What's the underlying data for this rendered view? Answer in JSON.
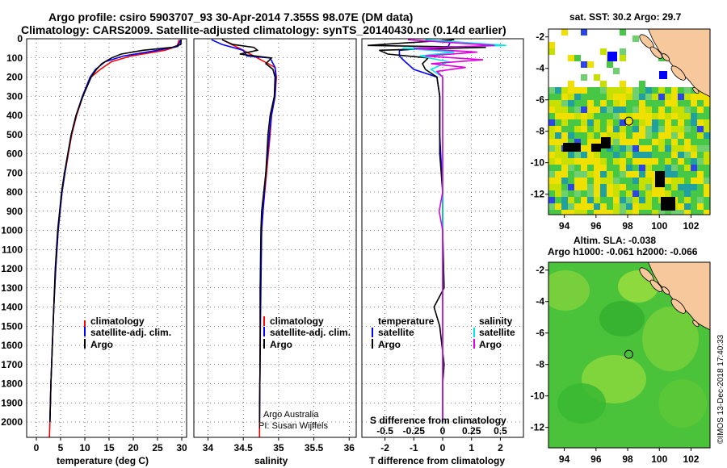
{
  "title_line1": "Argo profile: csiro 5903707_93 30-Apr-2014 7.355S 98.07E (DM data)",
  "title_line2": "Climatology: CARS2009. Satellite-adjusted climatology: synTS_20140430.nc (0.14d earlier)",
  "credit": "©IMOS 13-Dec-2018 17:40:33",
  "colors": {
    "climatology": "#ff0000",
    "satellite": "#0000ff",
    "argo": "#000000",
    "satellite_salinity": "#00e5e5",
    "argo_salinity": "#e000e0"
  },
  "chart_data": [
    {
      "type": "line",
      "name": "temperature",
      "xlabel": "temperature (deg C)",
      "ylabel": "",
      "xlim": [
        -2,
        31
      ],
      "ylim": [
        2080,
        0
      ],
      "xticks": [
        "0",
        "5",
        "10",
        "15",
        "20",
        "25",
        "30"
      ],
      "yticks": [
        "0",
        "100",
        "200",
        "300",
        "400",
        "500",
        "600",
        "700",
        "800",
        "900",
        "1000",
        "1100",
        "1200",
        "1300",
        "1400",
        "1500",
        "1600",
        "1700",
        "1800",
        "1900",
        "2000"
      ],
      "legend": [
        "climatology",
        "satellite-adj. clim.",
        "Argo"
      ],
      "series": [
        {
          "name": "climatology",
          "depth": [
            5,
            40,
            60,
            90,
            120,
            160,
            200,
            300,
            400,
            500,
            600,
            700,
            800,
            900,
            1000,
            1200,
            1400,
            1600,
            1800,
            2000,
            2080
          ],
          "values": [
            29.5,
            29,
            26.5,
            19.5,
            15.5,
            13.2,
            11.3,
            9.6,
            8.3,
            7.3,
            6.6,
            5.9,
            5.3,
            4.9,
            4.5,
            4.0,
            3.6,
            3.3,
            3.0,
            2.8,
            2.7
          ]
        },
        {
          "name": "satellite-adj. clim.",
          "depth": [
            5,
            40,
            60,
            90,
            120,
            160,
            200,
            300,
            400,
            500,
            600,
            700,
            800,
            900,
            1000,
            1200,
            1400,
            1600,
            1800,
            2000
          ],
          "values": [
            29.8,
            29.2,
            25,
            18,
            14.2,
            12.2,
            11.1,
            9.5,
            8.2,
            7.2,
            6.5,
            5.9,
            5.3,
            4.9,
            4.5,
            4.0,
            3.6,
            3.3,
            3.0,
            2.8
          ]
        },
        {
          "name": "Argo",
          "depth": [
            5,
            30,
            45,
            60,
            80,
            100,
            130,
            160,
            200,
            300,
            400,
            500,
            600,
            700,
            800,
            900,
            1000,
            1200,
            1400,
            1600,
            1800,
            2000
          ],
          "values": [
            29.9,
            29.8,
            28,
            22,
            17.5,
            15.5,
            13.5,
            12.4,
            11.3,
            9.6,
            8.2,
            7.2,
            6.5,
            5.8,
            5.2,
            4.8,
            4.4,
            3.9,
            3.6,
            3.3,
            3.0,
            2.8
          ]
        }
      ]
    },
    {
      "type": "line",
      "name": "salinity",
      "xlabel": "salinity",
      "xlim": [
        33.8,
        36.1
      ],
      "ylim": [
        2080,
        0
      ],
      "xticks": [
        "34",
        "34.5",
        "35",
        "35.5",
        "36"
      ],
      "legend": [
        "climatology",
        "satellite-adj. clim.",
        "Argo"
      ],
      "annotations": [
        "Argo Australia",
        "PI: Susan Wijffels"
      ],
      "series": [
        {
          "name": "climatology",
          "depth": [
            5,
            60,
            100,
            150,
            200,
            300,
            400,
            500,
            700,
            900,
            1000,
            1300,
            1600,
            2000,
            2080
          ],
          "values": [
            34.2,
            34.5,
            34.7,
            34.95,
            34.97,
            34.95,
            34.9,
            34.88,
            34.83,
            34.78,
            34.76,
            34.74,
            34.74,
            34.73,
            34.73
          ]
        },
        {
          "name": "satellite-adj. clim.",
          "depth": [
            5,
            30,
            60,
            90,
            100,
            150,
            200,
            300,
            400,
            500,
            700,
            900,
            1000,
            1300,
            1600,
            2000
          ],
          "values": [
            34.05,
            34.2,
            34.5,
            34.55,
            34.88,
            34.95,
            34.96,
            34.95,
            34.9,
            34.87,
            34.82,
            34.78,
            34.76,
            34.75,
            34.74,
            34.73
          ]
        },
        {
          "name": "Argo",
          "depth": [
            5,
            30,
            45,
            60,
            80,
            100,
            130,
            160,
            200,
            300,
            400,
            500,
            700,
            900,
            1000,
            1300,
            1600,
            2000
          ],
          "values": [
            34.2,
            34.35,
            34.65,
            34.7,
            34.45,
            34.9,
            34.82,
            34.92,
            34.95,
            34.94,
            34.88,
            34.85,
            34.82,
            34.76,
            34.75,
            34.74,
            34.74,
            34.73
          ]
        }
      ]
    },
    {
      "type": "line",
      "name": "difference from climatology",
      "xlabel": "T difference from climatology",
      "xlabel2": "S difference from climatology",
      "xlim": [
        -2.8,
        2.8
      ],
      "xlim2": [
        -0.7,
        0.7
      ],
      "ylim": [
        2080,
        0
      ],
      "xticks": [
        "-2",
        "-1",
        "0",
        "1",
        "2"
      ],
      "xticks2": [
        "-0.5",
        "-0.25",
        "0",
        "0.25",
        "0.5"
      ],
      "legend_temperature": [
        "temperature",
        "satellite",
        "Argo"
      ],
      "legend_salinity": [
        "salinity",
        "satellite",
        "Argo"
      ],
      "series": [
        {
          "name": "temperature satellite",
          "depth": [
            5,
            40,
            60,
            90,
            120,
            160,
            200,
            300,
            500,
            800,
            1000,
            1500,
            2000
          ],
          "values": [
            0.3,
            0.2,
            -1.5,
            -1.5,
            -1.3,
            -1.0,
            -0.2,
            -0.1,
            -0.1,
            0,
            0,
            0,
            0
          ]
        },
        {
          "name": "temperature Argo",
          "depth": [
            5,
            35,
            45,
            60,
            80,
            100,
            130,
            160,
            200,
            300,
            400,
            600,
            800,
            1000,
            1300,
            1400,
            1500,
            1700,
            1800,
            1900,
            2000
          ],
          "values": [
            0.4,
            -2.6,
            1.5,
            -2.2,
            -1.9,
            -0.5,
            -0.7,
            -0.6,
            -0.2,
            -0.1,
            -0.1,
            -0.1,
            0,
            0,
            0.05,
            -0.3,
            -0.1,
            0.05,
            0,
            0,
            0
          ]
        },
        {
          "name": "salinity satellite",
          "depth": [
            5,
            35,
            50,
            70,
            90,
            120,
            160,
            200,
            300,
            500,
            800,
            1000,
            1500,
            2000
          ],
          "values": [
            -0.15,
            0.55,
            -0.35,
            0.1,
            -0.2,
            0.05,
            -0.1,
            0,
            0,
            0,
            0,
            0,
            0,
            0
          ]
        },
        {
          "name": "salinity Argo",
          "depth": [
            5,
            35,
            50,
            70,
            90,
            110,
            130,
            150,
            170,
            200,
            300,
            500,
            800,
            900,
            1000,
            1500,
            2000
          ],
          "values": [
            -0.3,
            0.45,
            -0.25,
            0.3,
            -0.15,
            0.35,
            -0.1,
            0.2,
            -0.05,
            0,
            0,
            0,
            0,
            -0.03,
            0,
            0,
            0
          ]
        }
      ]
    },
    {
      "type": "heatmap",
      "name": "sat SST map",
      "title": "sat. SST: 30.2  Argo: 29.7",
      "xlim": [
        93,
        103.2
      ],
      "ylim": [
        -13.3,
        -1.5
      ],
      "xticks": [
        "94",
        "96",
        "98",
        "100",
        "102"
      ],
      "yticks": [
        "-2",
        "-4",
        "-6",
        "-8",
        "-10",
        "-12"
      ],
      "argo_position": [
        98.07,
        -7.355
      ]
    },
    {
      "type": "heatmap",
      "name": "altimetry SLA map",
      "title": "Altim. SLA: -0.038",
      "subtitle": "Argo h1000: -0.061 h2000: -0.066",
      "xlim": [
        93,
        103.2
      ],
      "ylim": [
        -13.3,
        -1.5
      ],
      "xticks": [
        "94",
        "96",
        "98",
        "100",
        "102"
      ],
      "yticks": [
        "-2",
        "-4",
        "-6",
        "-8",
        "-10",
        "-12"
      ],
      "argo_position": [
        98.07,
        -7.355
      ]
    }
  ]
}
